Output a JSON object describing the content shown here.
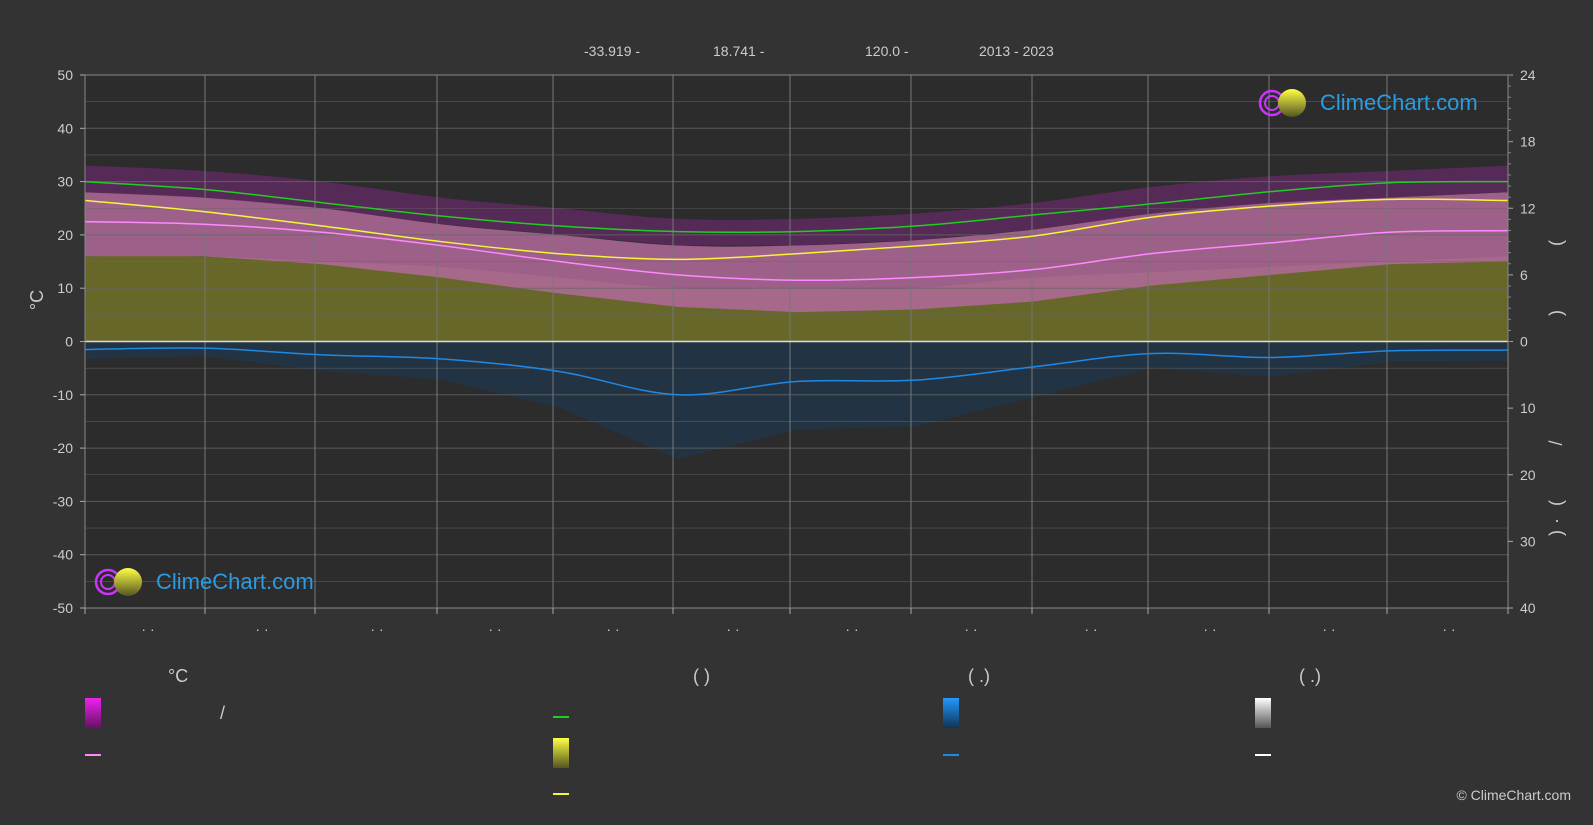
{
  "header": {
    "lat": "-33.919 -",
    "lon": "18.741 -",
    "elev": "120.0 -",
    "years": "2013 - 2023"
  },
  "logo_text": "ClimeChart.com",
  "copyright": "© ClimeChart.com",
  "left_axis_unit": "°C",
  "right_axis_marks": [
    "(",
    ")",
    "/",
    "(",
    "·",
    ")"
  ],
  "legend": {
    "temperature_title": "°C",
    "sunshine_title": "(          )",
    "precip_title": "(    .)",
    "snow_title": "(    .)",
    "slash": "/"
  },
  "colors": {
    "background": "#333333",
    "grid": "#777777",
    "axis_text": "#cccccc",
    "daylight": "#22cc22",
    "sunshine": "#f5f53a",
    "max_temp_mean": "#ff88ff",
    "precip": "#1e88e5",
    "logo_blue": "#2d9be0"
  },
  "chart_data": {
    "type": "area",
    "left_axis": {
      "range": [
        -50,
        50
      ],
      "ticks": [
        50,
        40,
        30,
        20,
        10,
        0,
        -10,
        -20,
        -30,
        -40,
        -50
      ]
    },
    "right_axis_top": {
      "range": [
        0,
        24
      ],
      "ticks": [
        24,
        18,
        12,
        6,
        0
      ]
    },
    "right_axis_bottom": {
      "range": [
        0,
        40
      ],
      "ticks": [
        0,
        10,
        20,
        30,
        40
      ]
    },
    "month_labels": [
      "· ·",
      "· ·",
      "· ·",
      "· ·",
      "· ·",
      "· ·",
      "· ·",
      "· ·",
      "· ·",
      "· ·",
      "· ·",
      "· ·"
    ],
    "months": [
      0,
      1,
      2,
      3,
      4,
      5,
      6,
      7,
      8,
      9,
      10,
      11,
      12
    ],
    "series": [
      {
        "key": "daylight",
        "values": [
          14.4,
          13.7,
          12.5,
          11.3,
          10.4,
          9.9,
          9.9,
          10.4,
          11.4,
          12.4,
          13.5,
          14.3,
          14.4
        ]
      },
      {
        "key": "sunshine",
        "values": [
          12.7,
          11.7,
          10.4,
          9.0,
          7.9,
          7.4,
          7.9,
          8.6,
          9.5,
          11.2,
          12.2,
          12.8,
          12.7
        ]
      },
      {
        "key": "max_temp_mean",
        "values": [
          22.5,
          22.0,
          20.5,
          18.0,
          15.0,
          12.5,
          11.5,
          12.0,
          13.5,
          16.5,
          18.5,
          20.5,
          20.8
        ]
      },
      {
        "key": "precip",
        "values": [
          1.2,
          1.0,
          2.0,
          2.6,
          4.5,
          8.0,
          6.0,
          5.8,
          3.8,
          1.8,
          2.4,
          1.4,
          1.3
        ]
      }
    ],
    "envelopes": {
      "temp_range_top": [
        28,
        27,
        25,
        22,
        20,
        18,
        18,
        19,
        21,
        24,
        26,
        27,
        28
      ],
      "temp_range_mid_top": [
        22,
        22,
        20.5,
        18,
        15,
        12.5,
        11.5,
        12,
        13.5,
        16.5,
        18.5,
        20.5,
        21
      ],
      "sunshine_area_top": [
        16,
        16,
        15,
        14,
        12,
        10,
        10,
        10,
        12,
        13,
        14,
        15,
        16
      ]
    }
  }
}
